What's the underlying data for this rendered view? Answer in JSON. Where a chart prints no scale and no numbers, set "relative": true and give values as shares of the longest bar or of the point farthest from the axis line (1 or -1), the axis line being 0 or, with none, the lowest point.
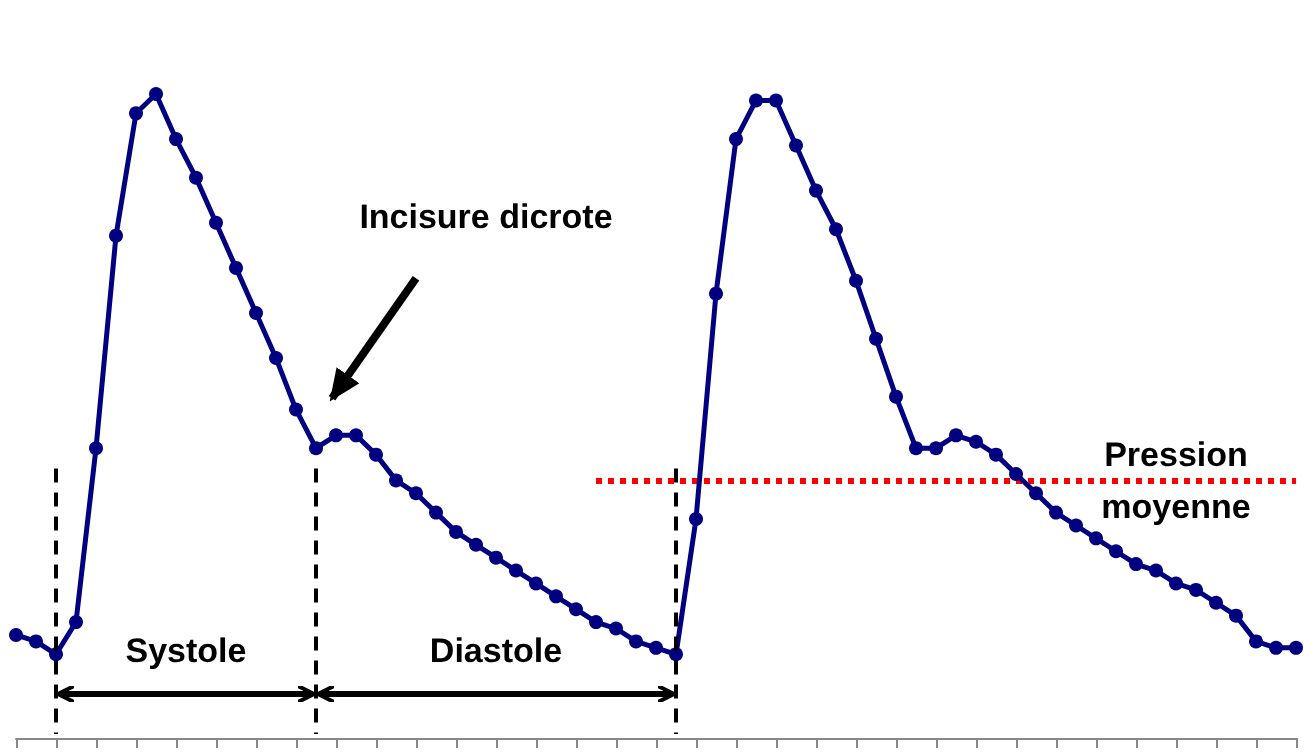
{
  "chart_data": {
    "type": "line",
    "relative": true,
    "categories": [
      null,
      null,
      null,
      null,
      null,
      null,
      null,
      null,
      null,
      null,
      null,
      null,
      null,
      null,
      null,
      null,
      null,
      null,
      null,
      null,
      null,
      null,
      null,
      null,
      null,
      null,
      null,
      null,
      null,
      null,
      null,
      null,
      null,
      null,
      null,
      null,
      null,
      null,
      null,
      null,
      null,
      null,
      null,
      null,
      null,
      null,
      null,
      null,
      null,
      null,
      null,
      null,
      null,
      null,
      null,
      null,
      null,
      null,
      null,
      null,
      null,
      null,
      null,
      null,
      null
    ],
    "series": [
      {
        "color": "#000080",
        "values": [
          0.16,
          0.15,
          0.13,
          0.18,
          0.45,
          0.78,
          0.97,
          1.0,
          0.93,
          0.87,
          0.8,
          0.73,
          0.66,
          0.59,
          0.51,
          0.45,
          0.47,
          0.47,
          0.44,
          0.4,
          0.38,
          0.35,
          0.32,
          0.3,
          0.28,
          0.26,
          0.24,
          0.22,
          0.2,
          0.18,
          0.17,
          0.15,
          0.14,
          0.13,
          0.34,
          0.69,
          0.93,
          0.99,
          0.99,
          0.92,
          0.85,
          0.79,
          0.71,
          0.62,
          0.53,
          0.45,
          0.45,
          0.47,
          0.46,
          0.44,
          0.41,
          0.38,
          0.35,
          0.33,
          0.31,
          0.29,
          0.27,
          0.26,
          0.24,
          0.23,
          0.21,
          0.19,
          0.15,
          0.14,
          0.14
        ]
      }
    ],
    "marker": "circle",
    "line_style": "solid",
    "grid": false,
    "ref_lines": [
      {
        "axis": "y",
        "value": 0.4,
        "label": "Pression moyenne",
        "color": "#ff0000",
        "line_style": "dotted"
      }
    ],
    "annotations": [
      "Incisure dicrote",
      "Systole",
      "Diastole"
    ]
  }
}
